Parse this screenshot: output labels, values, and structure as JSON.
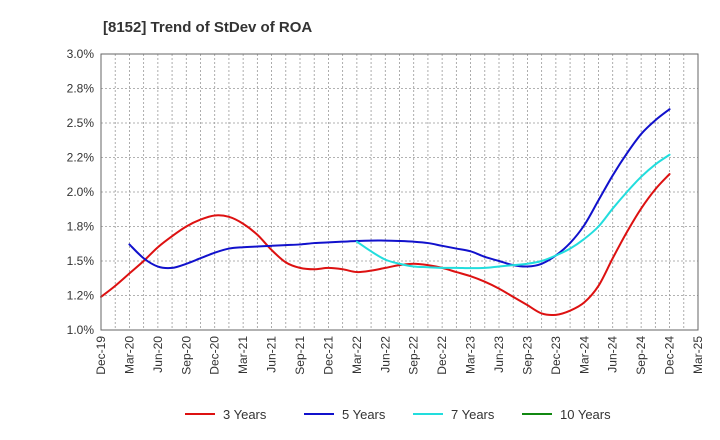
{
  "chart_data": {
    "type": "line",
    "title": "[8152]  Trend of StDev of ROA",
    "xlabel": "",
    "ylabel": "",
    "x_tick_labels": [
      "Dec-19",
      "Mar-20",
      "Jun-20",
      "Sep-20",
      "Dec-20",
      "Mar-21",
      "Jun-21",
      "Sep-21",
      "Dec-21",
      "Mar-22",
      "Jun-22",
      "Sep-22",
      "Dec-22",
      "Mar-23",
      "Jun-23",
      "Sep-23",
      "Dec-23",
      "Mar-24",
      "Jun-24",
      "Sep-24",
      "Dec-24",
      "Mar-25"
    ],
    "y_ticks": [
      1.0,
      1.25,
      1.5,
      1.75,
      2.0,
      2.25,
      2.5,
      2.75,
      3.0
    ],
    "y_tick_labels": [
      "1.0%",
      "1.2%",
      "1.5%",
      "1.8%",
      "2.0%",
      "2.2%",
      "2.5%",
      "2.8%",
      "3.0%"
    ],
    "ylim": [
      1.0,
      3.0
    ],
    "grid": true,
    "legend_position": "bottom",
    "series": [
      {
        "name": "3 Years",
        "color": "#dd1111",
        "points": [
          [
            0,
            1.24
          ],
          [
            0.5,
            1.32
          ],
          [
            1,
            1.41
          ],
          [
            1.5,
            1.5
          ],
          [
            2,
            1.6
          ],
          [
            2.5,
            1.68
          ],
          [
            3,
            1.75
          ],
          [
            3.5,
            1.8
          ],
          [
            4,
            1.83
          ],
          [
            4.5,
            1.82
          ],
          [
            5,
            1.77
          ],
          [
            5.5,
            1.69
          ],
          [
            6,
            1.58
          ],
          [
            6.5,
            1.49
          ],
          [
            7,
            1.45
          ],
          [
            7.5,
            1.44
          ],
          [
            8,
            1.45
          ],
          [
            8.5,
            1.44
          ],
          [
            9,
            1.42
          ],
          [
            9.5,
            1.43
          ],
          [
            10,
            1.45
          ],
          [
            10.5,
            1.47
          ],
          [
            11,
            1.48
          ],
          [
            11.5,
            1.47
          ],
          [
            12,
            1.45
          ],
          [
            12.5,
            1.42
          ],
          [
            13,
            1.39
          ],
          [
            13.5,
            1.35
          ],
          [
            14,
            1.3
          ],
          [
            14.5,
            1.24
          ],
          [
            15,
            1.18
          ],
          [
            15.5,
            1.12
          ],
          [
            16,
            1.11
          ],
          [
            16.5,
            1.14
          ],
          [
            17,
            1.2
          ],
          [
            17.5,
            1.32
          ],
          [
            18,
            1.52
          ],
          [
            18.5,
            1.71
          ],
          [
            19,
            1.88
          ],
          [
            19.5,
            2.02
          ],
          [
            20,
            2.13
          ]
        ]
      },
      {
        "name": "5 Years",
        "color": "#1111cc",
        "points": [
          [
            1,
            1.62
          ],
          [
            1.5,
            1.52
          ],
          [
            2,
            1.46
          ],
          [
            2.5,
            1.45
          ],
          [
            3,
            1.48
          ],
          [
            3.5,
            1.52
          ],
          [
            4,
            1.56
          ],
          [
            4.5,
            1.59
          ],
          [
            5,
            1.6
          ],
          [
            5.5,
            1.605
          ],
          [
            6,
            1.61
          ],
          [
            6.5,
            1.615
          ],
          [
            7,
            1.62
          ],
          [
            7.5,
            1.63
          ],
          [
            8,
            1.635
          ],
          [
            8.5,
            1.64
          ],
          [
            9,
            1.645
          ],
          [
            9.5,
            1.648
          ],
          [
            10,
            1.648
          ],
          [
            10.5,
            1.645
          ],
          [
            11,
            1.64
          ],
          [
            11.5,
            1.63
          ],
          [
            12,
            1.61
          ],
          [
            12.5,
            1.59
          ],
          [
            13,
            1.57
          ],
          [
            13.5,
            1.53
          ],
          [
            14,
            1.5
          ],
          [
            14.5,
            1.47
          ],
          [
            15,
            1.46
          ],
          [
            15.5,
            1.48
          ],
          [
            16,
            1.54
          ],
          [
            16.5,
            1.63
          ],
          [
            17,
            1.76
          ],
          [
            17.5,
            1.94
          ],
          [
            18,
            2.12
          ],
          [
            18.5,
            2.28
          ],
          [
            19,
            2.42
          ],
          [
            19.5,
            2.52
          ],
          [
            20,
            2.6
          ]
        ]
      },
      {
        "name": "7 Years",
        "color": "#22dddd",
        "points": [
          [
            9,
            1.64
          ],
          [
            9.5,
            1.57
          ],
          [
            10,
            1.51
          ],
          [
            10.5,
            1.48
          ],
          [
            11,
            1.46
          ],
          [
            11.5,
            1.455
          ],
          [
            12,
            1.45
          ],
          [
            12.5,
            1.45
          ],
          [
            13,
            1.448
          ],
          [
            13.5,
            1.45
          ],
          [
            14,
            1.46
          ],
          [
            14.5,
            1.47
          ],
          [
            15,
            1.48
          ],
          [
            15.5,
            1.5
          ],
          [
            16,
            1.54
          ],
          [
            16.5,
            1.59
          ],
          [
            17,
            1.66
          ],
          [
            17.5,
            1.75
          ],
          [
            18,
            1.88
          ],
          [
            18.5,
            2.0
          ],
          [
            19,
            2.11
          ],
          [
            19.5,
            2.2
          ],
          [
            20,
            2.27
          ]
        ]
      },
      {
        "name": "10 Years",
        "color": "#118811",
        "points": []
      }
    ]
  }
}
